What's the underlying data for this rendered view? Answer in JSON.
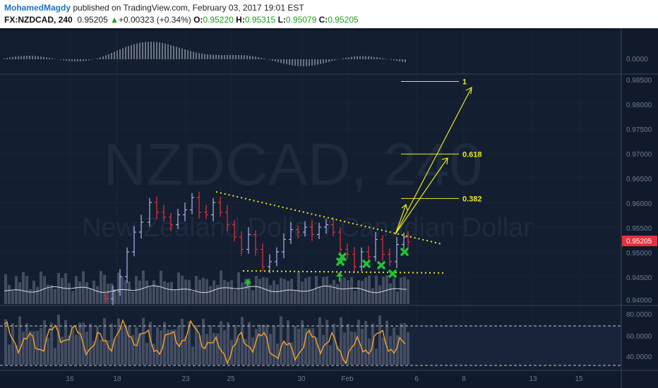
{
  "header": {
    "author": "MohamedMagdy",
    "published": " published on TradingView.com, February 03, 2017 19:01 EST",
    "symbol": "FX:NZDCAD, 240",
    "last": "0.95205",
    "change": "+0.00323 (+0.34%)",
    "o_label": "O:",
    "o": "0.95220",
    "h_label": "H:",
    "h": "0.95315",
    "l_label": "L:",
    "l": "0.95079",
    "c_label": "C:",
    "c": "0.95205"
  },
  "watermark": {
    "symbol": "NZDCAD, 240",
    "name": "New Zealand Dollar / Canadian Dollar"
  },
  "price_axis": {
    "ticks": [
      "0.98500",
      "0.98000",
      "0.97500",
      "0.97000",
      "0.96500",
      "0.96000",
      "0.95500",
      "0.95000",
      "0.94500",
      "0.94000"
    ],
    "current": "0.95205"
  },
  "top_axis": {
    "ticks": [
      "0.0000"
    ]
  },
  "rsi_axis": {
    "ticks": [
      "80.0000",
      "60.0000",
      "40.0000"
    ]
  },
  "time_axis": {
    "ticks": [
      "16",
      "18",
      "23",
      "25",
      "30",
      "Feb",
      "6",
      "8",
      "13",
      "15"
    ]
  },
  "fib_levels": [
    {
      "label": "1",
      "value": 0.9845
    },
    {
      "label": "0.618",
      "value": 0.9698
    },
    {
      "label": "0.382",
      "value": 0.9608
    }
  ],
  "colors": {
    "bull": "#aab4ee",
    "bear": "#e8313d",
    "fib": "#e8e820",
    "rsi": "#f5a42a",
    "arrow": "#22c433",
    "price_tag": "#e8313d"
  }
}
